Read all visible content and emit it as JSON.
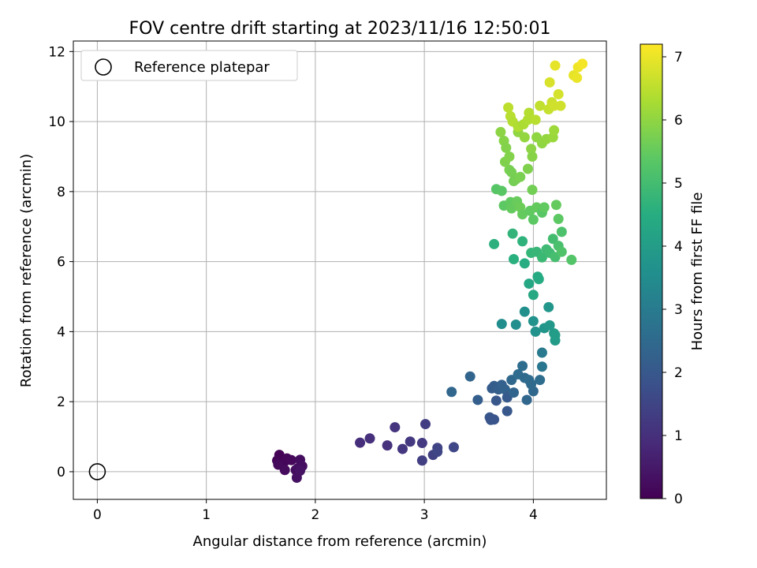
{
  "chart_data": {
    "type": "scatter",
    "title": "FOV centre drift starting at 2023/11/16 12:50:01",
    "xlabel": "Angular distance from reference (arcmin)",
    "ylabel": "Rotation from reference (arcmin)",
    "xlim": [
      -0.22,
      4.67
    ],
    "ylim": [
      -0.79,
      12.3
    ],
    "xticks": [
      0,
      1,
      2,
      3,
      4
    ],
    "yticks": [
      0,
      2,
      4,
      6,
      8,
      10,
      12
    ],
    "grid": true,
    "legend": {
      "position": "top-left",
      "entries": [
        {
          "label": "Reference platepar",
          "marker": "open-circle",
          "color": "#000000"
        }
      ]
    },
    "reference_point": {
      "x": 0,
      "y": 0
    },
    "colorbar": {
      "label": "Hours from first FF file",
      "colormap": "viridis",
      "range": [
        0,
        7.2
      ],
      "ticks": [
        0,
        1,
        2,
        3,
        4,
        5,
        6,
        7
      ]
    },
    "points": [
      {
        "x": 1.67,
        "y": 0.48,
        "h": 0.05
      },
      {
        "x": 1.65,
        "y": 0.32,
        "h": 0.08
      },
      {
        "x": 1.72,
        "y": 0.3,
        "h": 0.1
      },
      {
        "x": 1.74,
        "y": 0.38,
        "h": 0.12
      },
      {
        "x": 1.78,
        "y": 0.33,
        "h": 0.15
      },
      {
        "x": 1.66,
        "y": 0.2,
        "h": 0.18
      },
      {
        "x": 1.72,
        "y": 0.05,
        "h": 0.2
      },
      {
        "x": 1.82,
        "y": 0.05,
        "h": 0.22
      },
      {
        "x": 1.86,
        "y": 0.34,
        "h": 0.25
      },
      {
        "x": 1.88,
        "y": 0.16,
        "h": 0.28
      },
      {
        "x": 1.84,
        "y": 0.1,
        "h": 0.3
      },
      {
        "x": 1.83,
        "y": -0.17,
        "h": 0.32
      },
      {
        "x": 1.86,
        "y": 0.03,
        "h": 0.35
      },
      {
        "x": 2.41,
        "y": 0.83,
        "h": 0.95
      },
      {
        "x": 2.5,
        "y": 0.95,
        "h": 1.0
      },
      {
        "x": 2.66,
        "y": 0.75,
        "h": 1.05
      },
      {
        "x": 2.73,
        "y": 1.27,
        "h": 1.1
      },
      {
        "x": 2.8,
        "y": 0.65,
        "h": 1.15
      },
      {
        "x": 2.87,
        "y": 0.86,
        "h": 1.2
      },
      {
        "x": 2.98,
        "y": 0.82,
        "h": 1.25
      },
      {
        "x": 3.01,
        "y": 1.36,
        "h": 1.3
      },
      {
        "x": 2.98,
        "y": 0.32,
        "h": 1.35
      },
      {
        "x": 3.08,
        "y": 0.48,
        "h": 1.4
      },
      {
        "x": 3.12,
        "y": 0.68,
        "h": 1.45
      },
      {
        "x": 3.12,
        "y": 0.57,
        "h": 1.5
      },
      {
        "x": 3.27,
        "y": 0.7,
        "h": 1.55
      },
      {
        "x": 3.25,
        "y": 2.28,
        "h": 2.4
      },
      {
        "x": 3.42,
        "y": 2.72,
        "h": 2.35
      },
      {
        "x": 3.49,
        "y": 2.05,
        "h": 2.2
      },
      {
        "x": 3.6,
        "y": 1.55,
        "h": 1.95
      },
      {
        "x": 3.61,
        "y": 1.48,
        "h": 1.9
      },
      {
        "x": 3.64,
        "y": 1.49,
        "h": 1.92
      },
      {
        "x": 3.62,
        "y": 2.38,
        "h": 2.1
      },
      {
        "x": 3.64,
        "y": 2.45,
        "h": 2.15
      },
      {
        "x": 3.68,
        "y": 2.35,
        "h": 2.2
      },
      {
        "x": 3.71,
        "y": 2.48,
        "h": 2.25
      },
      {
        "x": 3.66,
        "y": 2.03,
        "h": 2.0
      },
      {
        "x": 3.74,
        "y": 2.35,
        "h": 2.3
      },
      {
        "x": 3.76,
        "y": 2.12,
        "h": 2.05
      },
      {
        "x": 3.76,
        "y": 1.73,
        "h": 2.0
      },
      {
        "x": 3.8,
        "y": 2.62,
        "h": 2.45
      },
      {
        "x": 3.82,
        "y": 2.26,
        "h": 2.35
      },
      {
        "x": 3.86,
        "y": 2.78,
        "h": 2.55
      },
      {
        "x": 3.9,
        "y": 3.02,
        "h": 2.6
      },
      {
        "x": 3.92,
        "y": 2.68,
        "h": 2.5
      },
      {
        "x": 3.94,
        "y": 2.05,
        "h": 2.4
      },
      {
        "x": 3.96,
        "y": 2.62,
        "h": 2.55
      },
      {
        "x": 4.0,
        "y": 2.3,
        "h": 2.45
      },
      {
        "x": 3.98,
        "y": 2.5,
        "h": 2.5
      },
      {
        "x": 4.06,
        "y": 2.62,
        "h": 2.6
      },
      {
        "x": 4.08,
        "y": 3.0,
        "h": 2.85
      },
      {
        "x": 4.08,
        "y": 3.4,
        "h": 2.95
      },
      {
        "x": 3.71,
        "y": 4.22,
        "h": 3.5
      },
      {
        "x": 3.84,
        "y": 4.2,
        "h": 3.55
      },
      {
        "x": 3.92,
        "y": 4.57,
        "h": 3.6
      },
      {
        "x": 4.0,
        "y": 4.3,
        "h": 3.65
      },
      {
        "x": 4.02,
        "y": 4.0,
        "h": 3.7
      },
      {
        "x": 4.1,
        "y": 4.1,
        "h": 3.75
      },
      {
        "x": 4.14,
        "y": 4.7,
        "h": 3.8
      },
      {
        "x": 4.15,
        "y": 4.18,
        "h": 3.85
      },
      {
        "x": 4.19,
        "y": 3.95,
        "h": 3.9
      },
      {
        "x": 4.2,
        "y": 3.75,
        "h": 3.95
      },
      {
        "x": 4.2,
        "y": 3.9,
        "h": 4.0
      },
      {
        "x": 3.96,
        "y": 5.37,
        "h": 4.3
      },
      {
        "x": 4.0,
        "y": 5.05,
        "h": 4.35
      },
      {
        "x": 4.04,
        "y": 5.57,
        "h": 4.4
      },
      {
        "x": 4.05,
        "y": 5.5,
        "h": 4.45
      },
      {
        "x": 3.92,
        "y": 5.95,
        "h": 4.5
      },
      {
        "x": 3.82,
        "y": 6.07,
        "h": 4.55
      },
      {
        "x": 3.64,
        "y": 6.5,
        "h": 4.6
      },
      {
        "x": 3.9,
        "y": 6.58,
        "h": 4.65
      },
      {
        "x": 3.81,
        "y": 6.8,
        "h": 4.7
      },
      {
        "x": 3.98,
        "y": 6.25,
        "h": 4.75
      },
      {
        "x": 4.03,
        "y": 6.28,
        "h": 4.8
      },
      {
        "x": 4.08,
        "y": 6.12,
        "h": 4.85
      },
      {
        "x": 4.12,
        "y": 6.35,
        "h": 4.9
      },
      {
        "x": 4.15,
        "y": 6.25,
        "h": 4.95
      },
      {
        "x": 4.18,
        "y": 6.65,
        "h": 5.0
      },
      {
        "x": 4.2,
        "y": 6.13,
        "h": 5.05
      },
      {
        "x": 4.23,
        "y": 6.45,
        "h": 5.1
      },
      {
        "x": 4.26,
        "y": 6.85,
        "h": 5.15
      },
      {
        "x": 4.26,
        "y": 6.28,
        "h": 5.2
      },
      {
        "x": 4.35,
        "y": 6.05,
        "h": 5.25
      },
      {
        "x": 3.66,
        "y": 8.07,
        "h": 5.3
      },
      {
        "x": 3.71,
        "y": 8.02,
        "h": 5.35
      },
      {
        "x": 3.73,
        "y": 7.6,
        "h": 5.4
      },
      {
        "x": 3.79,
        "y": 7.7,
        "h": 5.45
      },
      {
        "x": 3.8,
        "y": 7.52,
        "h": 5.5
      },
      {
        "x": 3.85,
        "y": 7.72,
        "h": 5.55
      },
      {
        "x": 3.88,
        "y": 7.55,
        "h": 5.6
      },
      {
        "x": 3.9,
        "y": 7.35,
        "h": 5.5
      },
      {
        "x": 3.97,
        "y": 7.45,
        "h": 5.45
      },
      {
        "x": 3.99,
        "y": 8.05,
        "h": 5.65
      },
      {
        "x": 4.0,
        "y": 7.2,
        "h": 5.4
      },
      {
        "x": 4.03,
        "y": 7.55,
        "h": 5.5
      },
      {
        "x": 4.08,
        "y": 7.4,
        "h": 5.35
      },
      {
        "x": 4.1,
        "y": 7.55,
        "h": 5.45
      },
      {
        "x": 4.21,
        "y": 7.62,
        "h": 5.5
      },
      {
        "x": 4.23,
        "y": 7.22,
        "h": 5.4
      },
      {
        "x": 3.7,
        "y": 9.7,
        "h": 5.95
      },
      {
        "x": 3.73,
        "y": 9.45,
        "h": 5.9
      },
      {
        "x": 3.75,
        "y": 9.25,
        "h": 5.85
      },
      {
        "x": 3.74,
        "y": 8.85,
        "h": 5.8
      },
      {
        "x": 3.78,
        "y": 9.0,
        "h": 5.85
      },
      {
        "x": 3.78,
        "y": 8.62,
        "h": 5.75
      },
      {
        "x": 3.8,
        "y": 8.55,
        "h": 5.7
      },
      {
        "x": 3.82,
        "y": 8.3,
        "h": 5.65
      },
      {
        "x": 3.84,
        "y": 8.35,
        "h": 5.7
      },
      {
        "x": 3.88,
        "y": 8.42,
        "h": 5.75
      },
      {
        "x": 3.86,
        "y": 9.7,
        "h": 6.0
      },
      {
        "x": 3.92,
        "y": 9.55,
        "h": 6.05
      },
      {
        "x": 3.95,
        "y": 8.65,
        "h": 5.8
      },
      {
        "x": 3.98,
        "y": 9.22,
        "h": 5.95
      },
      {
        "x": 3.99,
        "y": 9.0,
        "h": 5.9
      },
      {
        "x": 4.03,
        "y": 9.55,
        "h": 6.0
      },
      {
        "x": 4.08,
        "y": 9.38,
        "h": 6.0
      },
      {
        "x": 4.12,
        "y": 9.5,
        "h": 6.05
      },
      {
        "x": 4.18,
        "y": 9.55,
        "h": 6.1
      },
      {
        "x": 4.19,
        "y": 9.75,
        "h": 6.15
      },
      {
        "x": 3.77,
        "y": 10.4,
        "h": 6.5
      },
      {
        "x": 3.79,
        "y": 10.15,
        "h": 6.45
      },
      {
        "x": 3.81,
        "y": 10.0,
        "h": 6.4
      },
      {
        "x": 3.86,
        "y": 9.85,
        "h": 6.35
      },
      {
        "x": 3.91,
        "y": 9.92,
        "h": 6.3
      },
      {
        "x": 3.95,
        "y": 10.05,
        "h": 6.35
      },
      {
        "x": 3.96,
        "y": 10.25,
        "h": 6.4
      },
      {
        "x": 4.02,
        "y": 10.05,
        "h": 6.45
      },
      {
        "x": 4.06,
        "y": 10.45,
        "h": 6.55
      },
      {
        "x": 4.14,
        "y": 10.35,
        "h": 6.6
      },
      {
        "x": 4.17,
        "y": 10.55,
        "h": 6.65
      },
      {
        "x": 4.19,
        "y": 10.45,
        "h": 6.7
      },
      {
        "x": 4.23,
        "y": 10.78,
        "h": 6.75
      },
      {
        "x": 4.25,
        "y": 10.45,
        "h": 6.7
      },
      {
        "x": 4.15,
        "y": 11.12,
        "h": 6.8
      },
      {
        "x": 4.2,
        "y": 11.6,
        "h": 6.95
      },
      {
        "x": 4.37,
        "y": 11.32,
        "h": 6.95
      },
      {
        "x": 4.4,
        "y": 11.25,
        "h": 7.0
      },
      {
        "x": 4.41,
        "y": 11.55,
        "h": 7.05
      },
      {
        "x": 4.45,
        "y": 11.65,
        "h": 7.1
      }
    ]
  }
}
